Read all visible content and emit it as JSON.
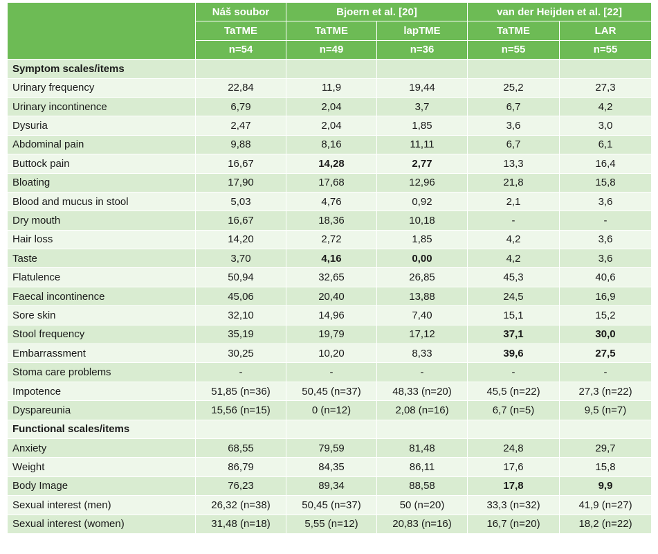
{
  "header": {
    "groups": [
      "Náš soubor",
      "Bjoern et al. [20]",
      "van der Heijden et al. [22]"
    ],
    "methods": [
      "TaTME",
      "TaTME",
      "lapTME",
      "TaTME",
      "LAR"
    ],
    "counts": [
      "n=54",
      "n=49",
      "n=36",
      "n=55",
      "n=55"
    ]
  },
  "sections": [
    {
      "title": "Symptom scales/items",
      "rows": [
        {
          "label": "Urinary frequency",
          "values": [
            "22,84",
            "11,9",
            "19,44",
            "25,2",
            "27,3"
          ]
        },
        {
          "label": "Urinary incontinence",
          "values": [
            "6,79",
            "2,04",
            "3,7",
            "6,7",
            "4,2"
          ]
        },
        {
          "label": "Dysuria",
          "values": [
            "2,47",
            "2,04",
            "1,85",
            "3,6",
            "3,0"
          ]
        },
        {
          "label": "Abdominal pain",
          "values": [
            "9,88",
            "8,16",
            "11,11",
            "6,7",
            "6,1"
          ]
        },
        {
          "label": "Buttock pain",
          "values": [
            "16,67",
            "14,28",
            "2,77",
            "13,3",
            "16,4"
          ],
          "bold": [
            1,
            2
          ]
        },
        {
          "label": "Bloating",
          "values": [
            "17,90",
            "17,68",
            "12,96",
            "21,8",
            "15,8"
          ]
        },
        {
          "label": "Blood and mucus in stool",
          "values": [
            "5,03",
            "4,76",
            "0,92",
            "2,1",
            "3,6"
          ]
        },
        {
          "label": "Dry mouth",
          "values": [
            "16,67",
            "18,36",
            "10,18",
            "-",
            "-"
          ]
        },
        {
          "label": "Hair loss",
          "values": [
            "14,20",
            "2,72",
            "1,85",
            "4,2",
            "3,6"
          ]
        },
        {
          "label": "Taste",
          "values": [
            "3,70",
            "4,16",
            "0,00",
            "4,2",
            "3,6"
          ],
          "bold": [
            1,
            2
          ]
        },
        {
          "label": "Flatulence",
          "values": [
            "50,94",
            "32,65",
            "26,85",
            "45,3",
            "40,6"
          ]
        },
        {
          "label": "Faecal incontinence",
          "values": [
            "45,06",
            "20,40",
            "13,88",
            "24,5",
            "16,9"
          ]
        },
        {
          "label": "Sore skin",
          "values": [
            "32,10",
            "14,96",
            "7,40",
            "15,1",
            "15,2"
          ]
        },
        {
          "label": "Stool frequency",
          "values": [
            "35,19",
            "19,79",
            "17,12",
            "37,1",
            "30,0"
          ],
          "bold": [
            3,
            4
          ]
        },
        {
          "label": "Embarrassment",
          "values": [
            "30,25",
            "10,20",
            "8,33",
            "39,6",
            "27,5"
          ],
          "bold": [
            3,
            4
          ]
        },
        {
          "label": "Stoma care problems",
          "values": [
            "-",
            "-",
            "-",
            "-",
            "-"
          ]
        },
        {
          "label": "Impotence",
          "values": [
            "51,85 (n=36)",
            "50,45 (n=37)",
            "48,33 (n=20)",
            "45,5 (n=22)",
            "27,3 (n=22)"
          ]
        },
        {
          "label": "Dyspareunia",
          "values": [
            "15,56 (n=15)",
            "0 (n=12)",
            "2,08 (n=16)",
            "6,7 (n=5)",
            "9,5 (n=7)"
          ]
        }
      ]
    },
    {
      "title": "Functional scales/items",
      "rows": [
        {
          "label": "Anxiety",
          "values": [
            "68,55",
            "79,59",
            "81,48",
            "24,8",
            "29,7"
          ]
        },
        {
          "label": "Weight",
          "values": [
            "86,79",
            "84,35",
            "86,11",
            "17,6",
            "15,8"
          ]
        },
        {
          "label": "Body Image",
          "values": [
            "76,23",
            "89,34",
            "88,58",
            "17,8",
            "9,9"
          ],
          "bold": [
            3,
            4
          ]
        },
        {
          "label": "Sexual interest (men)",
          "values": [
            "26,32 (n=38)",
            "50,45 (n=37)",
            "50 (n=20)",
            "33,3 (n=32)",
            "41,9 (n=27)"
          ]
        },
        {
          "label": "Sexual interest (women)",
          "values": [
            "31,48 (n=18)",
            "5,55 (n=12)",
            "20,83 (n=16)",
            "16,7 (n=20)",
            "18,2 (n=22)"
          ]
        }
      ]
    }
  ],
  "colors": {
    "header_bg": "#6dbb55",
    "row_dark": "#d9ecd1",
    "row_light": "#eef7ea"
  }
}
